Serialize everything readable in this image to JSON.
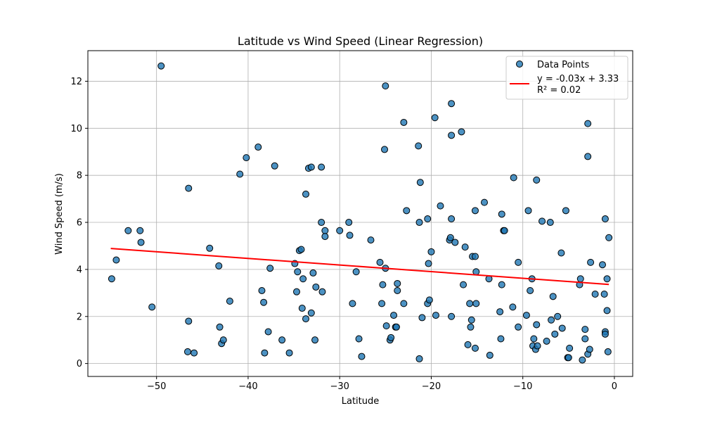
{
  "chart_data": {
    "type": "scatter",
    "title": "Latitude vs Wind Speed (Linear Regression)",
    "xlabel": "Latitude",
    "ylabel": "Wind Speed (m/s)",
    "xlim": [
      -57.5,
      2
    ],
    "ylim": [
      -0.55,
      13.3
    ],
    "xticks": [
      -50,
      -40,
      -30,
      -20,
      -10,
      0
    ],
    "xtick_labels": [
      "−50",
      "−40",
      "−30",
      "−20",
      "−10",
      "0"
    ],
    "yticks": [
      0,
      2,
      4,
      6,
      8,
      10,
      12
    ],
    "ytick_labels": [
      "0",
      "2",
      "4",
      "6",
      "8",
      "10",
      "12"
    ],
    "grid": true,
    "legend_position": "top-right",
    "series": [
      {
        "name": "Data Points",
        "color": "#1f77b4",
        "points": [
          [
            -54.9,
            3.6
          ],
          [
            -54.4,
            4.4
          ],
          [
            -53.1,
            5.65
          ],
          [
            -51.8,
            5.65
          ],
          [
            -51.7,
            5.15
          ],
          [
            -50.5,
            2.4
          ],
          [
            -49.5,
            12.65
          ],
          [
            -46.5,
            7.45
          ],
          [
            -46.5,
            1.8
          ],
          [
            -46.6,
            0.5
          ],
          [
            -45.9,
            0.45
          ],
          [
            -44.2,
            4.9
          ],
          [
            -43.2,
            4.15
          ],
          [
            -43.1,
            1.55
          ],
          [
            -42.9,
            0.85
          ],
          [
            -42.7,
            1.0
          ],
          [
            -42.0,
            2.65
          ],
          [
            -40.9,
            8.05
          ],
          [
            -40.2,
            8.75
          ],
          [
            -38.9,
            9.2
          ],
          [
            -38.5,
            3.1
          ],
          [
            -38.3,
            2.6
          ],
          [
            -38.2,
            0.45
          ],
          [
            -37.8,
            1.35
          ],
          [
            -37.6,
            4.05
          ],
          [
            -37.1,
            8.4
          ],
          [
            -36.3,
            1.0
          ],
          [
            -35.5,
            0.45
          ],
          [
            -34.9,
            4.25
          ],
          [
            -34.7,
            3.05
          ],
          [
            -34.6,
            3.9
          ],
          [
            -34.4,
            4.8
          ],
          [
            -34.2,
            4.85
          ],
          [
            -34.0,
            3.6
          ],
          [
            -34.1,
            2.35
          ],
          [
            -33.7,
            7.2
          ],
          [
            -33.7,
            1.9
          ],
          [
            -33.4,
            8.3
          ],
          [
            -33.1,
            8.35
          ],
          [
            -33.1,
            2.15
          ],
          [
            -32.9,
            3.85
          ],
          [
            -32.7,
            1.0
          ],
          [
            -32.6,
            3.25
          ],
          [
            -32.0,
            8.35
          ],
          [
            -32.0,
            6.0
          ],
          [
            -31.9,
            3.05
          ],
          [
            -31.6,
            5.65
          ],
          [
            -31.6,
            5.4
          ],
          [
            -30.0,
            5.65
          ],
          [
            -29.0,
            6.0
          ],
          [
            -28.9,
            5.45
          ],
          [
            -28.6,
            2.55
          ],
          [
            -28.2,
            3.9
          ],
          [
            -27.9,
            1.05
          ],
          [
            -27.6,
            0.3
          ],
          [
            -26.6,
            5.25
          ],
          [
            -25.6,
            4.3
          ],
          [
            -25.4,
            2.55
          ],
          [
            -25.3,
            3.35
          ],
          [
            -25.0,
            11.8
          ],
          [
            -25.1,
            9.1
          ],
          [
            -25.0,
            4.05
          ],
          [
            -24.9,
            1.6
          ],
          [
            -24.5,
            1.0
          ],
          [
            -24.4,
            1.1
          ],
          [
            -24.1,
            2.05
          ],
          [
            -23.9,
            1.55
          ],
          [
            -23.8,
            1.55
          ],
          [
            -23.7,
            3.4
          ],
          [
            -23.7,
            3.1
          ],
          [
            -23.0,
            2.55
          ],
          [
            -23.0,
            10.25
          ],
          [
            -22.7,
            6.5
          ],
          [
            -21.4,
            9.25
          ],
          [
            -21.3,
            6.0
          ],
          [
            -21.2,
            7.7
          ],
          [
            -21.3,
            0.2
          ],
          [
            -21.0,
            1.95
          ],
          [
            -20.4,
            6.15
          ],
          [
            -20.4,
            2.55
          ],
          [
            -20.3,
            4.25
          ],
          [
            -20.2,
            2.7
          ],
          [
            -20.0,
            4.75
          ],
          [
            -19.6,
            10.45
          ],
          [
            -19.5,
            2.05
          ],
          [
            -19.0,
            6.7
          ],
          [
            -18.0,
            5.25
          ],
          [
            -17.9,
            5.35
          ],
          [
            -17.8,
            11.05
          ],
          [
            -17.8,
            9.7
          ],
          [
            -17.8,
            6.15
          ],
          [
            -17.8,
            2.0
          ],
          [
            -17.4,
            5.15
          ],
          [
            -16.7,
            9.85
          ],
          [
            -16.5,
            3.35
          ],
          [
            -16.3,
            4.95
          ],
          [
            -16.0,
            0.8
          ],
          [
            -15.8,
            2.55
          ],
          [
            -15.7,
            1.55
          ],
          [
            -15.6,
            1.85
          ],
          [
            -15.5,
            4.55
          ],
          [
            -15.2,
            4.55
          ],
          [
            -15.2,
            6.5
          ],
          [
            -15.2,
            0.65
          ],
          [
            -15.1,
            3.9
          ],
          [
            -15.1,
            2.55
          ],
          [
            -14.2,
            6.85
          ],
          [
            -13.7,
            3.6
          ],
          [
            -13.6,
            0.35
          ],
          [
            -12.5,
            2.2
          ],
          [
            -12.4,
            1.05
          ],
          [
            -12.3,
            6.35
          ],
          [
            -12.3,
            3.35
          ],
          [
            -12.1,
            5.65
          ],
          [
            -12.0,
            5.65
          ],
          [
            -11.1,
            2.4
          ],
          [
            -11.0,
            7.9
          ],
          [
            -10.5,
            4.3
          ],
          [
            -10.5,
            1.55
          ],
          [
            -9.6,
            2.05
          ],
          [
            -9.4,
            6.5
          ],
          [
            -9.2,
            3.1
          ],
          [
            -9.0,
            3.6
          ],
          [
            -8.9,
            0.75
          ],
          [
            -8.8,
            1.05
          ],
          [
            -8.6,
            0.6
          ],
          [
            -8.5,
            7.8
          ],
          [
            -8.5,
            1.65
          ],
          [
            -8.4,
            0.75
          ],
          [
            -7.9,
            6.05
          ],
          [
            -7.4,
            0.95
          ],
          [
            -7.0,
            6.0
          ],
          [
            -6.9,
            1.85
          ],
          [
            -6.7,
            2.85
          ],
          [
            -6.5,
            1.25
          ],
          [
            -6.2,
            2.0
          ],
          [
            -5.8,
            4.7
          ],
          [
            -5.7,
            1.5
          ],
          [
            -5.3,
            6.5
          ],
          [
            -5.1,
            0.25
          ],
          [
            -5.0,
            0.25
          ],
          [
            -4.9,
            0.65
          ],
          [
            -3.8,
            3.35
          ],
          [
            -3.7,
            3.6
          ],
          [
            -3.5,
            0.15
          ],
          [
            -3.2,
            1.45
          ],
          [
            -3.2,
            1.05
          ],
          [
            -2.9,
            10.2
          ],
          [
            -2.9,
            8.8
          ],
          [
            -2.9,
            0.4
          ],
          [
            -2.7,
            0.6
          ],
          [
            -2.6,
            4.3
          ],
          [
            -2.1,
            2.95
          ],
          [
            -1.3,
            4.2
          ],
          [
            -1.1,
            2.95
          ],
          [
            -1.0,
            6.15
          ],
          [
            -1.0,
            1.35
          ],
          [
            -1.0,
            1.25
          ],
          [
            -0.8,
            3.6
          ],
          [
            -0.8,
            2.25
          ],
          [
            -0.7,
            0.5
          ],
          [
            -0.6,
            5.35
          ]
        ]
      }
    ],
    "regression": {
      "name": "y = -0.03x + 3.33\nR² = 0.02",
      "color": "#ff0000",
      "x_start": -55,
      "y_start": 4.89,
      "x_end": -0.6,
      "y_end": 3.36
    }
  }
}
